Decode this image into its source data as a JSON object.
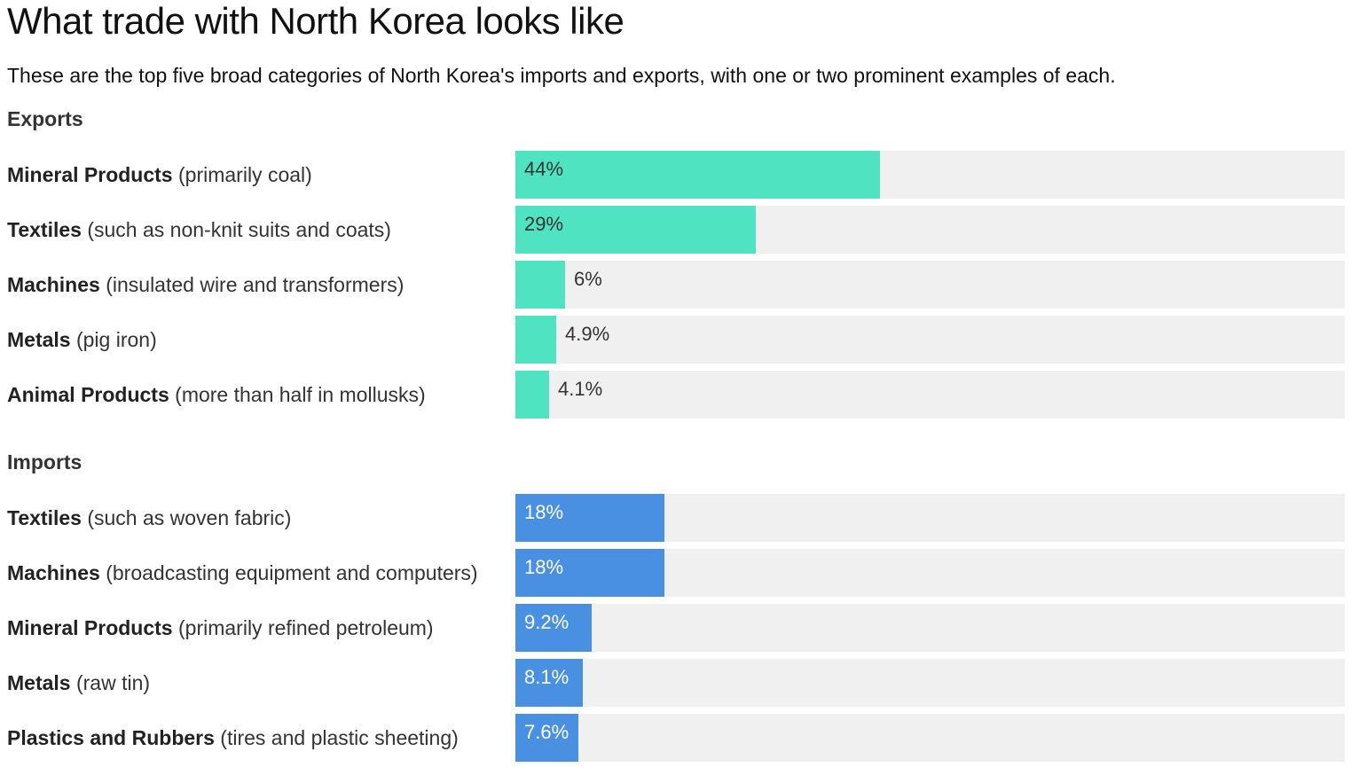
{
  "title": "What trade with North Korea looks like",
  "subtitle": "These are the top five broad categories of North Korea's imports and exports, with one or two prominent examples of each.",
  "colors": {
    "exports": "#50e3c2",
    "imports": "#4a90e2",
    "track": "#f0f0f0"
  },
  "chart_data": [
    {
      "type": "bar",
      "title": "Exports",
      "xlim": [
        0,
        100
      ],
      "categories": [
        "Mineral Products",
        "Textiles",
        "Machines",
        "Metals",
        "Animal Products"
      ],
      "details": [
        "(primarily coal)",
        "(such as non-knit suits and coats)",
        "(insulated wire and transformers)",
        "(pig iron)",
        "(more than half in mollusks)"
      ],
      "values": [
        44,
        29,
        6,
        4.9,
        4.1
      ],
      "data_labels": [
        "44%",
        "29%",
        "6%",
        "4.9%",
        "4.1%"
      ]
    },
    {
      "type": "bar",
      "title": "Imports",
      "xlim": [
        0,
        100
      ],
      "categories": [
        "Textiles",
        "Machines",
        "Mineral Products",
        "Metals",
        "Plastics and Rubbers"
      ],
      "details": [
        "(such as woven fabric)",
        "(broadcasting equipment and computers)",
        "(primarily refined petroleum)",
        "(raw tin)",
        "(tires and plastic sheeting)"
      ],
      "values": [
        18,
        18,
        9.2,
        8.1,
        7.6
      ],
      "data_labels": [
        "18%",
        "18%",
        "9.2%",
        "8.1%",
        "7.6%"
      ]
    }
  ]
}
